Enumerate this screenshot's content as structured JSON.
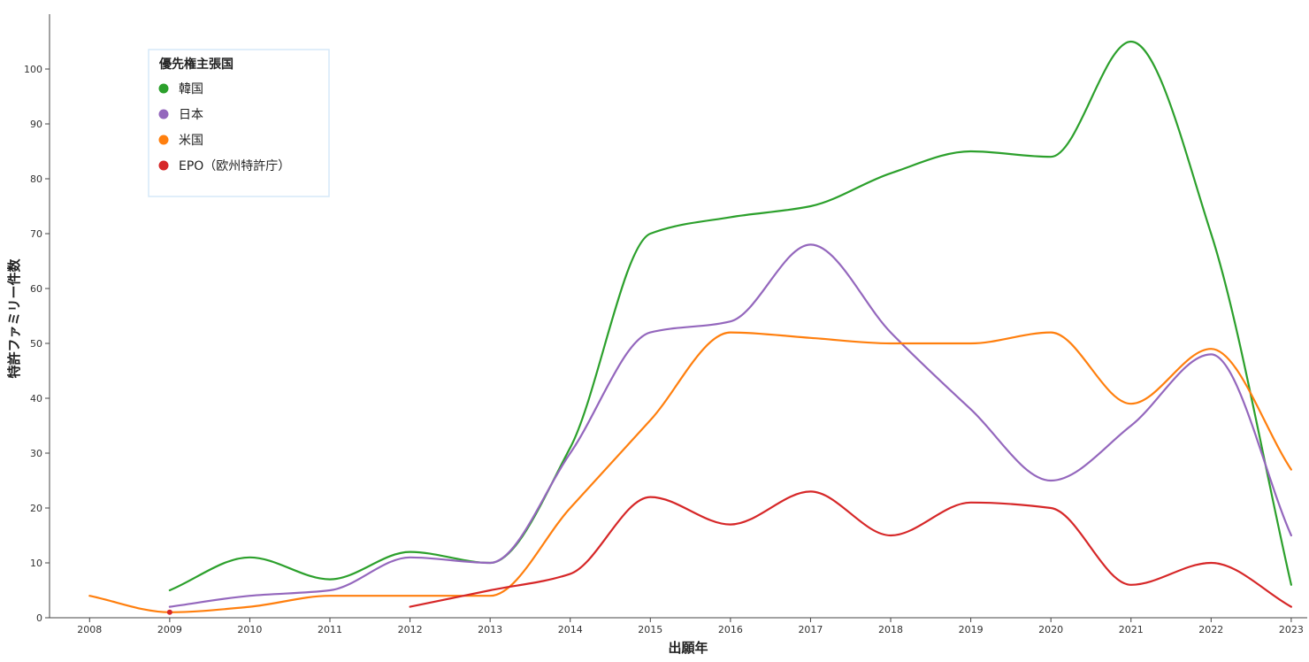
{
  "chart_data": {
    "type": "line",
    "xlabel": "出願年",
    "ylabel": "特許ファミリー件数",
    "x": [
      2008,
      2009,
      2010,
      2011,
      2012,
      2013,
      2014,
      2015,
      2016,
      2017,
      2018,
      2019,
      2020,
      2021,
      2022,
      2023
    ],
    "xlim": [
      2007.5,
      2023.2
    ],
    "ylim": [
      0,
      110
    ],
    "yticks": [
      0,
      10,
      20,
      30,
      40,
      50,
      60,
      70,
      80,
      90,
      100
    ],
    "grid": false,
    "legend": {
      "title": "優先権主張国",
      "position": "top-left"
    },
    "series": [
      {
        "name": "韓国",
        "color": "#2ca02c",
        "points": [
          [
            2009,
            5
          ],
          [
            2010,
            11
          ],
          [
            2011,
            7
          ],
          [
            2012,
            12
          ],
          [
            2013,
            10
          ],
          [
            2014,
            31
          ],
          [
            2015,
            70
          ],
          [
            2016,
            73
          ],
          [
            2017,
            75
          ],
          [
            2018,
            81
          ],
          [
            2019,
            85
          ],
          [
            2020,
            84
          ],
          [
            2021,
            105
          ],
          [
            2022,
            70
          ],
          [
            2023,
            6
          ]
        ]
      },
      {
        "name": "日本",
        "color": "#9467bd",
        "points": [
          [
            2009,
            2
          ],
          [
            2010,
            4
          ],
          [
            2011,
            5
          ],
          [
            2012,
            11
          ],
          [
            2013,
            10
          ],
          [
            2014,
            30
          ],
          [
            2015,
            52
          ],
          [
            2016,
            54
          ],
          [
            2017,
            68
          ],
          [
            2018,
            52
          ],
          [
            2019,
            38
          ],
          [
            2020,
            25
          ],
          [
            2021,
            35
          ],
          [
            2022,
            48
          ],
          [
            2023,
            15
          ]
        ]
      },
      {
        "name": "米国",
        "color": "#ff7f0e",
        "points": [
          [
            2008,
            4
          ],
          [
            2009,
            1
          ],
          [
            2010,
            2
          ],
          [
            2011,
            4
          ],
          [
            2012,
            4
          ],
          [
            2013,
            4
          ],
          [
            2014,
            20
          ],
          [
            2015,
            36
          ],
          [
            2016,
            52
          ],
          [
            2017,
            51
          ],
          [
            2018,
            50
          ],
          [
            2019,
            50
          ],
          [
            2020,
            52
          ],
          [
            2021,
            39
          ],
          [
            2022,
            49
          ],
          [
            2023,
            27
          ]
        ]
      },
      {
        "name": "EPO（欧州特許庁）",
        "color": "#d62728",
        "points": [
          [
            2009,
            1
          ],
          [
            2012,
            2
          ],
          [
            2013,
            5
          ],
          [
            2014,
            8
          ],
          [
            2015,
            22
          ],
          [
            2016,
            17
          ],
          [
            2017,
            23
          ],
          [
            2018,
            15
          ],
          [
            2019,
            21
          ],
          [
            2020,
            20
          ],
          [
            2021,
            6
          ],
          [
            2022,
            10
          ],
          [
            2023,
            2
          ]
        ],
        "segments": [
          [
            [
              2009,
              1
            ]
          ],
          [
            [
              2012,
              2
            ],
            [
              2013,
              5
            ],
            [
              2014,
              8
            ],
            [
              2015,
              22
            ],
            [
              2016,
              17
            ],
            [
              2017,
              23
            ],
            [
              2018,
              15
            ],
            [
              2019,
              21
            ],
            [
              2020,
              20
            ],
            [
              2021,
              6
            ],
            [
              2022,
              10
            ],
            [
              2023,
              2
            ]
          ]
        ]
      }
    ]
  }
}
